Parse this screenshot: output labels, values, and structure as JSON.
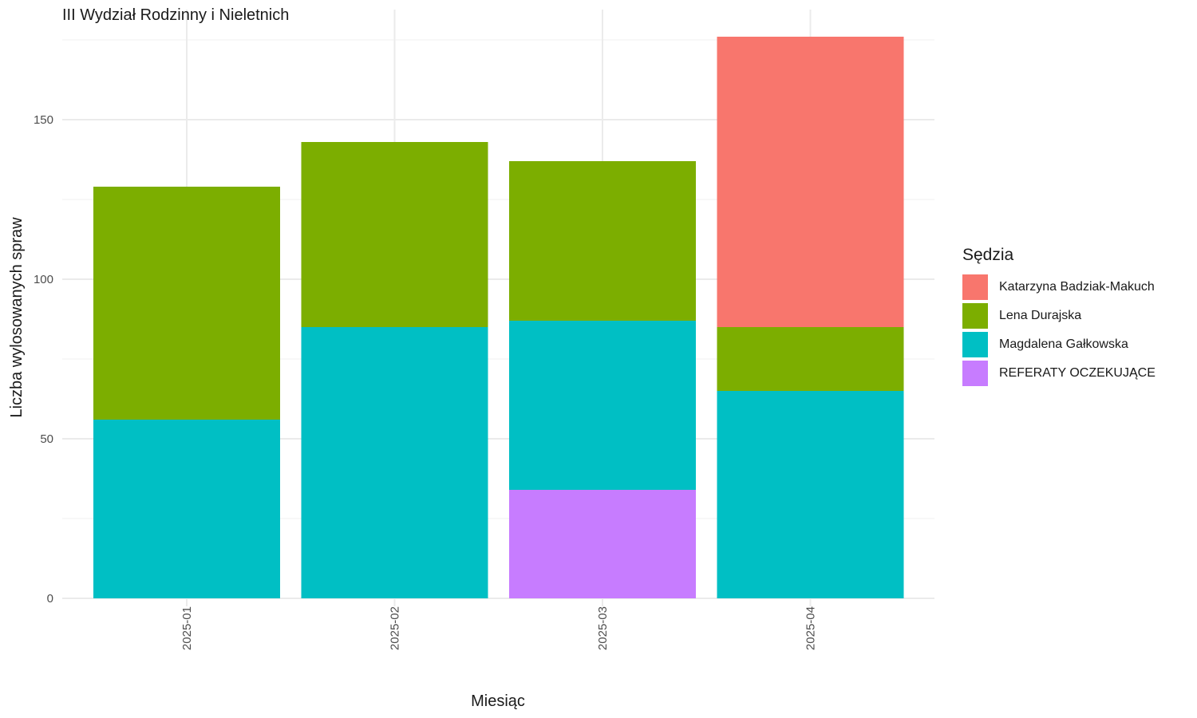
{
  "chart_data": {
    "type": "bar",
    "stacked": true,
    "title": "III Wydział Rodzinny i Nieletnich",
    "xlabel": "Miesiąc",
    "ylabel": "Liczba wylosowanych spraw",
    "categories": [
      "2025-01",
      "2025-02",
      "2025-03",
      "2025-04"
    ],
    "ylim": [
      0,
      176
    ],
    "yticks": [
      0,
      50,
      100,
      150
    ],
    "grid": true,
    "legend_title": "Sędzia",
    "legend_position": "right",
    "series": [
      {
        "name": "Katarzyna Badziak-Makuch",
        "color": "#F8766D",
        "values": [
          0,
          0,
          0,
          91
        ]
      },
      {
        "name": "Lena Durajska",
        "color": "#7CAE00",
        "values": [
          73,
          58,
          50,
          20
        ]
      },
      {
        "name": "Magdalena Gałkowska",
        "color": "#00BFC4",
        "values": [
          56,
          85,
          53,
          65
        ]
      },
      {
        "name": "REFERATY OCZEKUJĄCE",
        "color": "#C77CFF",
        "values": [
          0,
          0,
          34,
          0
        ]
      }
    ],
    "stack_order_bottom_to_top": [
      "REFERATY OCZEKUJĄCE",
      "Magdalena Gałkowska",
      "Lena Durajska",
      "Katarzyna Badziak-Makuch"
    ]
  }
}
